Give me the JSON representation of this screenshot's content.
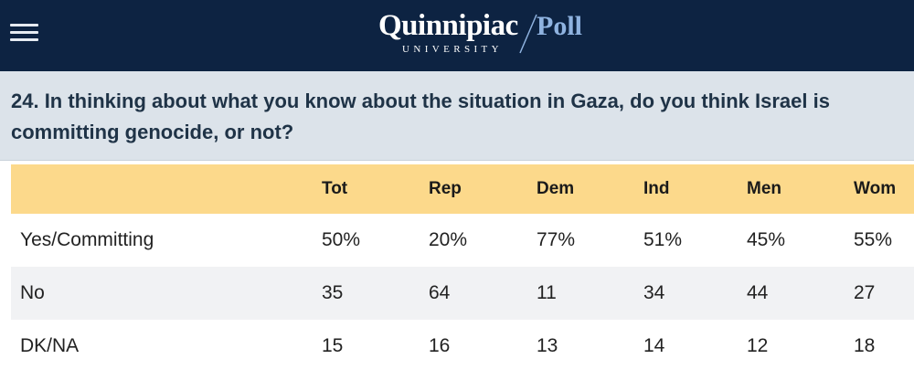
{
  "header": {
    "logo_main": "Quinnipiac",
    "logo_poll": "Poll",
    "logo_sub": "UNIVERSITY",
    "menu_icon": "hamburger-menu-icon"
  },
  "question": {
    "text": "24. In thinking about what you know about the situation in Gaza, do you think Israel is committing genocide, or not?"
  },
  "table": {
    "columns": [
      "Tot",
      "Rep",
      "Dem",
      "Ind",
      "Men",
      "Wom"
    ],
    "rows": [
      {
        "label": "Yes/Committing",
        "values": [
          "50%",
          "20%",
          "77%",
          "51%",
          "45%",
          "55%"
        ]
      },
      {
        "label": "No",
        "values": [
          "35",
          "64",
          "11",
          "34",
          "44",
          "27"
        ]
      },
      {
        "label": "DK/NA",
        "values": [
          "15",
          "16",
          "13",
          "14",
          "12",
          "18"
        ]
      }
    ]
  },
  "colors": {
    "header_bg": "#0d2342",
    "question_bg": "#dce3ea",
    "table_head_bg": "#fcd98b",
    "poll_accent": "#8fb3e0"
  }
}
